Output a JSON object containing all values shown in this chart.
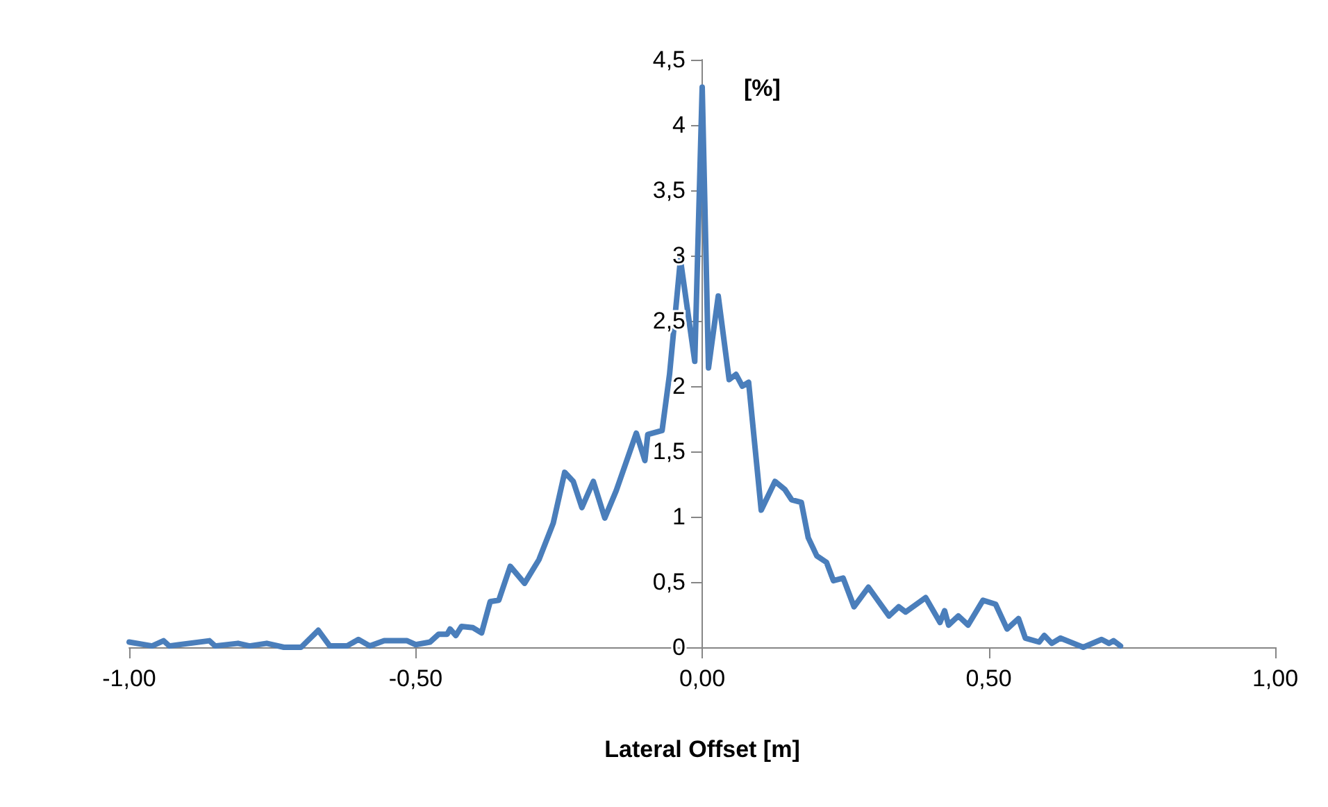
{
  "chart_data": {
    "type": "line",
    "xlabel": "Lateral Offset [m]",
    "ylabel": "[%]",
    "xlim": [
      -1,
      1
    ],
    "ylim": [
      0,
      4.5
    ],
    "xticks": [
      {
        "value": -1,
        "label": "-1,00"
      },
      {
        "value": -0.5,
        "label": "-0,50"
      },
      {
        "value": 0,
        "label": "0,00"
      },
      {
        "value": 0.5,
        "label": "0,50"
      },
      {
        "value": 1,
        "label": "1,00"
      }
    ],
    "yticks": [
      0,
      {
        "value": 0.5,
        "label": "0,5"
      },
      1,
      {
        "value": 1.5,
        "label": "1,5"
      },
      2,
      {
        "value": 2.5,
        "label": "2,5"
      },
      3,
      {
        "value": 3.5,
        "label": "3,5"
      },
      4,
      {
        "value": 4.5,
        "label": "4,5"
      }
    ],
    "grid": false,
    "legend": false,
    "marker": "none",
    "line_style": "solid",
    "series": [
      {
        "color": "#4a7ebb",
        "x": [
          -1.0,
          -0.96,
          -0.94,
          -0.93,
          -0.86,
          -0.85,
          -0.81,
          -0.79,
          -0.76,
          -0.73,
          -0.7,
          -0.67,
          -0.65,
          -0.62,
          -0.6,
          -0.58,
          -0.555,
          -0.515,
          -0.5,
          -0.475,
          -0.46,
          -0.445,
          -0.44,
          -0.43,
          -0.42,
          -0.4,
          -0.385,
          -0.37,
          -0.355,
          -0.335,
          -0.31,
          -0.285,
          -0.26,
          -0.24,
          -0.225,
          -0.21,
          -0.19,
          -0.17,
          -0.15,
          -0.115,
          -0.1,
          -0.095,
          -0.07,
          -0.057,
          -0.038,
          -0.013,
          0.0,
          0.011,
          0.028,
          0.047,
          0.059,
          0.07,
          0.081,
          0.103,
          0.127,
          0.144,
          0.156,
          0.173,
          0.185,
          0.2,
          0.217,
          0.229,
          0.246,
          0.265,
          0.29,
          0.326,
          0.343,
          0.355,
          0.39,
          0.415,
          0.423,
          0.43,
          0.447,
          0.464,
          0.49,
          0.512,
          0.532,
          0.552,
          0.564,
          0.588,
          0.597,
          0.61,
          0.625,
          0.665,
          0.697,
          0.71,
          0.718,
          0.73
        ],
        "values": [
          0.04,
          0.01,
          0.05,
          0.01,
          0.05,
          0.01,
          0.03,
          0.01,
          0.03,
          0.0,
          0.0,
          0.13,
          0.01,
          0.01,
          0.06,
          0.01,
          0.05,
          0.05,
          0.02,
          0.04,
          0.1,
          0.1,
          0.14,
          0.09,
          0.16,
          0.15,
          0.11,
          0.35,
          0.36,
          0.62,
          0.49,
          0.67,
          0.95,
          1.34,
          1.27,
          1.07,
          1.27,
          0.99,
          1.2,
          1.64,
          1.43,
          1.63,
          1.66,
          2.09,
          2.97,
          2.19,
          4.29,
          2.14,
          2.69,
          2.05,
          2.09,
          2.0,
          2.03,
          1.05,
          1.27,
          1.21,
          1.13,
          1.11,
          0.84,
          0.7,
          0.65,
          0.51,
          0.53,
          0.31,
          0.46,
          0.24,
          0.31,
          0.27,
          0.38,
          0.19,
          0.28,
          0.17,
          0.24,
          0.17,
          0.36,
          0.33,
          0.14,
          0.22,
          0.07,
          0.04,
          0.09,
          0.03,
          0.07,
          0.0,
          0.06,
          0.03,
          0.05,
          0.01
        ]
      }
    ]
  }
}
